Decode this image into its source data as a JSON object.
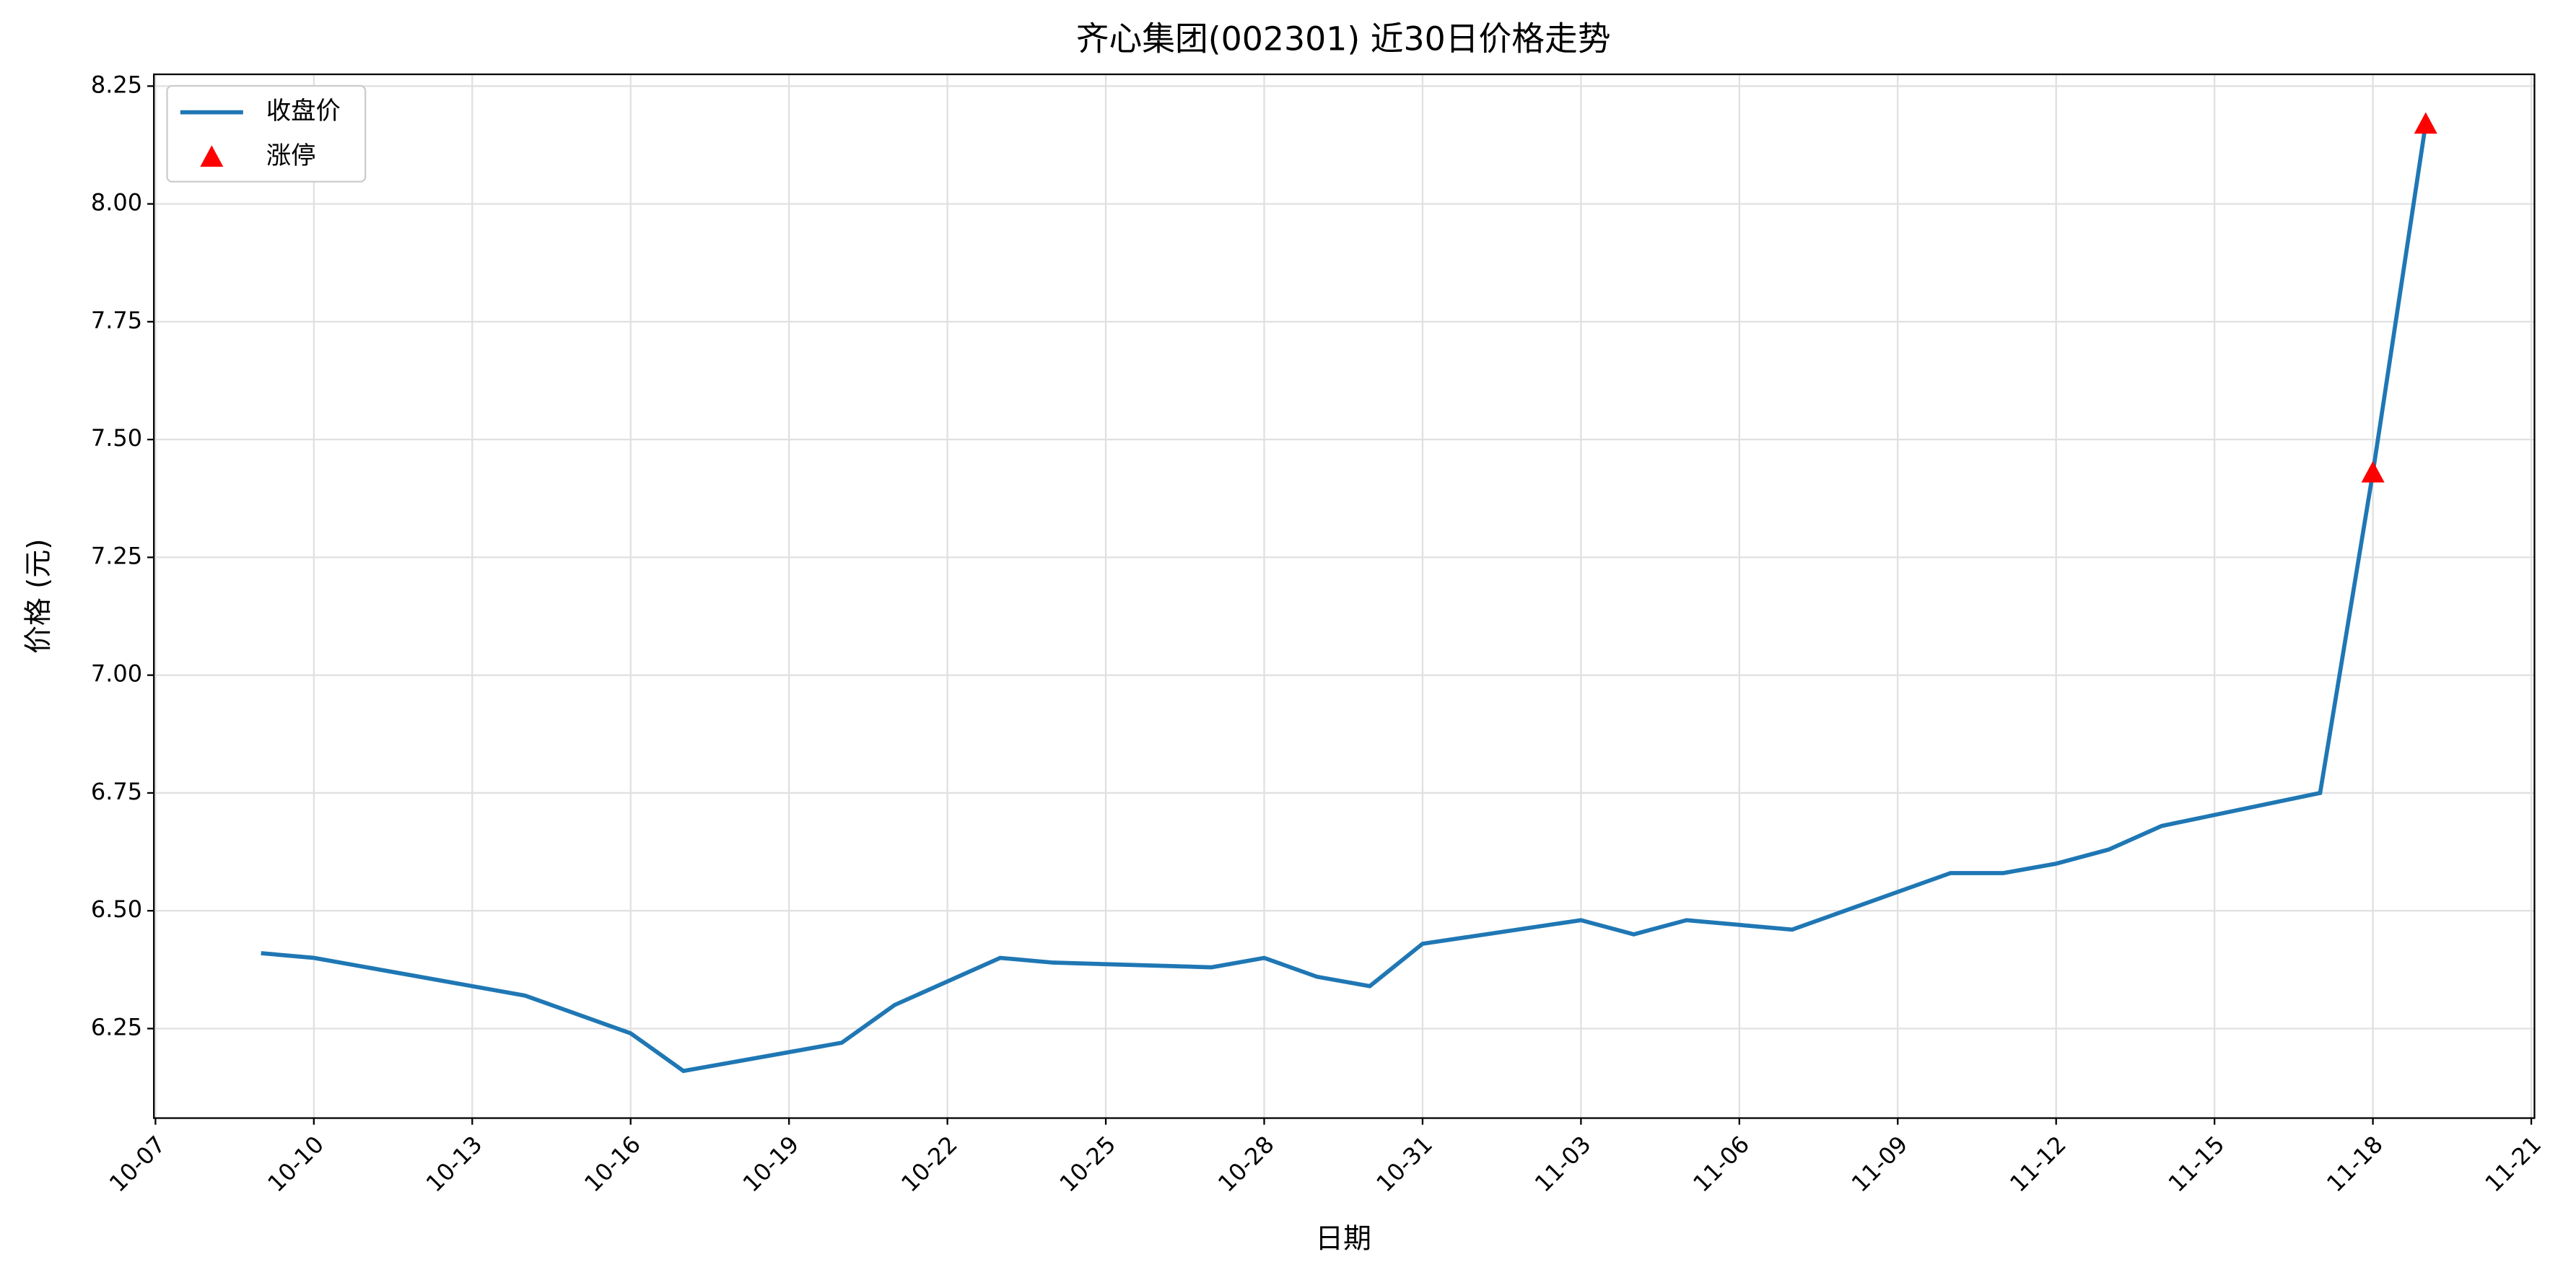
{
  "chart_data": {
    "type": "line",
    "title": "齐心集团(002301) 近30日价格走势",
    "xlabel": "日期",
    "ylabel": "价格 (元)",
    "grid": true,
    "legend": "upper left",
    "series": [
      {
        "name": "收盘价",
        "type": "line",
        "color": "#1f77b4",
        "x": [
          "10-09",
          "10-10",
          "10-14",
          "10-16",
          "10-17",
          "10-20",
          "10-21",
          "10-23",
          "10-24",
          "10-27",
          "10-28",
          "10-29",
          "10-30",
          "10-31",
          "11-03",
          "11-04",
          "11-05",
          "11-07",
          "11-10",
          "11-11",
          "11-12",
          "11-13",
          "11-14",
          "11-17",
          "11-18",
          "11-19"
        ],
        "values": [
          6.41,
          6.4,
          6.32,
          6.24,
          6.16,
          6.22,
          6.3,
          6.4,
          6.39,
          6.38,
          6.4,
          6.36,
          6.34,
          6.43,
          6.48,
          6.45,
          6.48,
          6.46,
          6.58,
          6.58,
          6.6,
          6.63,
          6.68,
          6.75,
          7.43,
          8.17
        ]
      },
      {
        "name": "涨停",
        "type": "scatter",
        "color": "#ff0000",
        "x": [
          "11-18",
          "11-19"
        ],
        "values": [
          7.43,
          8.17
        ]
      }
    ],
    "xlim": [
      "10-07",
      "11-21"
    ],
    "xticks": [
      "10-07",
      "10-10",
      "10-13",
      "10-16",
      "10-19",
      "10-22",
      "10-25",
      "10-28",
      "10-31",
      "11-03",
      "11-06",
      "11-09",
      "11-12",
      "11-15",
      "11-18",
      "11-21"
    ],
    "ylim": [
      6.06,
      8.275
    ],
    "yticks": [
      6.25,
      {
        "value": 6.5,
        "label": "6.50"
      },
      6.75,
      {
        "value": 7,
        "label": "7.00"
      },
      7.25,
      {
        "value": 7.5,
        "label": "7.50"
      },
      7.75,
      {
        "value": 8,
        "label": "8.00"
      },
      8.25
    ]
  }
}
